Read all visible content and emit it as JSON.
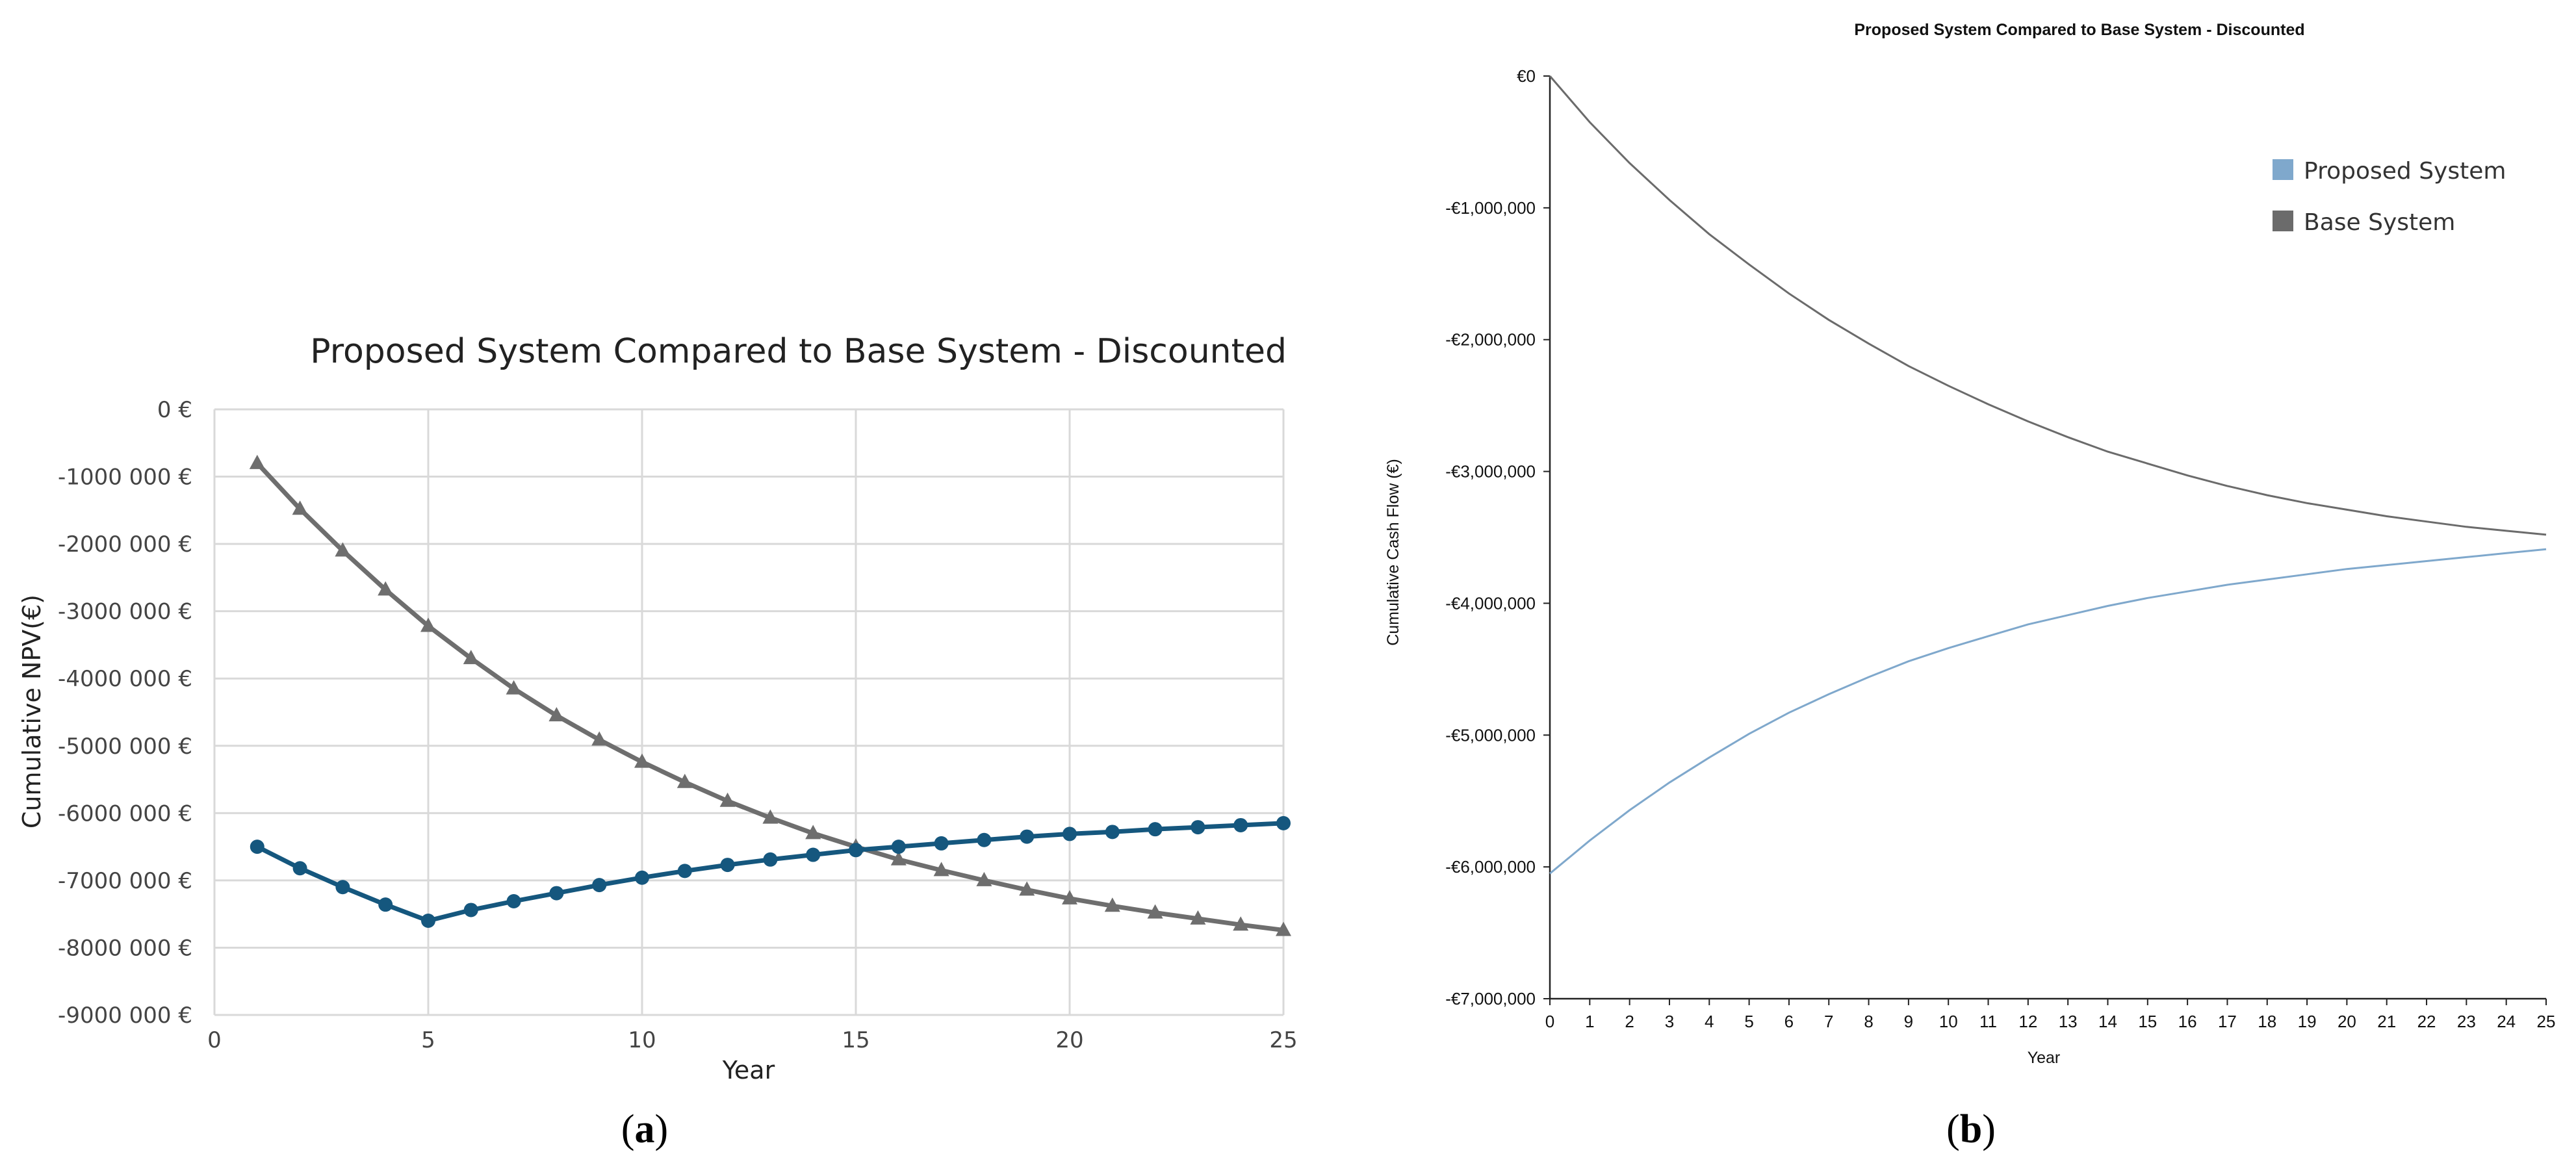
{
  "panels": [
    {
      "label_open": "(",
      "label_letter": "a",
      "label_close": ")"
    },
    {
      "label_open": "(",
      "label_letter": "b",
      "label_close": ")"
    }
  ],
  "chart_data": [
    {
      "type": "line",
      "title": "Proposed System Compared to Base System - Discounted",
      "xlabel": "Year",
      "ylabel": "Cumulative NPV(€)",
      "xlim": [
        0,
        25
      ],
      "ylim": [
        -9000000,
        0
      ],
      "grid": true,
      "x_ticks": [
        0,
        5,
        10,
        15,
        20,
        25
      ],
      "y_ticks": [
        0,
        -1000000,
        -2000000,
        -3000000,
        -4000000,
        -5000000,
        -6000000,
        -7000000,
        -8000000,
        -9000000
      ],
      "y_tick_labels": [
        "0 €",
        "-1000 000 €",
        "-2000 000 €",
        "-3000 000 €",
        "-4000 000 €",
        "-5000 000 €",
        "-6000 000 €",
        "-7000 000 €",
        "-8000 000 €",
        "-9000 000 €"
      ],
      "x": [
        1,
        2,
        3,
        4,
        5,
        6,
        7,
        8,
        9,
        10,
        11,
        12,
        13,
        14,
        15,
        16,
        17,
        18,
        19,
        20,
        21,
        22,
        23,
        24,
        25
      ],
      "series": [
        {
          "name": "Base System",
          "color": "#6e6e6e",
          "marker": "triangle",
          "values": [
            -800000,
            -1480000,
            -2100000,
            -2680000,
            -3220000,
            -3700000,
            -4150000,
            -4550000,
            -4910000,
            -5240000,
            -5540000,
            -5820000,
            -6070000,
            -6300000,
            -6500000,
            -6690000,
            -6850000,
            -7000000,
            -7140000,
            -7270000,
            -7380000,
            -7480000,
            -7570000,
            -7660000,
            -7740000
          ]
        },
        {
          "name": "Proposed System",
          "color": "#15577e",
          "marker": "circle",
          "values": [
            -6500000,
            -6820000,
            -7100000,
            -7360000,
            -7600000,
            -7440000,
            -7310000,
            -7190000,
            -7070000,
            -6960000,
            -6860000,
            -6770000,
            -6690000,
            -6620000,
            -6550000,
            -6500000,
            -6450000,
            -6400000,
            -6350000,
            -6310000,
            -6280000,
            -6240000,
            -6210000,
            -6180000,
            -6150000
          ]
        }
      ]
    },
    {
      "type": "line",
      "title": "Proposed System Compared to Base System - Discounted",
      "xlabel": "Year",
      "ylabel": "Cumulative Cash Flow (€)",
      "xlim": [
        0,
        25
      ],
      "ylim": [
        -7000000,
        0
      ],
      "grid": false,
      "legend_position": "top-right",
      "x_ticks": [
        0,
        1,
        2,
        3,
        4,
        5,
        6,
        7,
        8,
        9,
        10,
        11,
        12,
        13,
        14,
        15,
        16,
        17,
        18,
        19,
        20,
        21,
        22,
        23,
        24,
        25
      ],
      "y_ticks": [
        0,
        -1000000,
        -2000000,
        -3000000,
        -4000000,
        -5000000,
        -6000000,
        -7000000
      ],
      "y_tick_labels": [
        "€0",
        "-€1,000,000",
        "-€2,000,000",
        "-€3,000,000",
        "-€4,000,000",
        "-€5,000,000",
        "-€6,000,000",
        "-€7,000,000"
      ],
      "x": [
        0,
        1,
        2,
        3,
        4,
        5,
        6,
        7,
        8,
        9,
        10,
        11,
        12,
        13,
        14,
        15,
        16,
        17,
        18,
        19,
        20,
        21,
        22,
        23,
        24,
        25
      ],
      "series": [
        {
          "name": "Proposed System",
          "color": "#7fa8cc",
          "values": [
            -6050000,
            -5800000,
            -5570000,
            -5360000,
            -5170000,
            -4990000,
            -4830000,
            -4690000,
            -4560000,
            -4440000,
            -4340000,
            -4250000,
            -4160000,
            -4090000,
            -4020000,
            -3960000,
            -3910000,
            -3860000,
            -3820000,
            -3780000,
            -3740000,
            -3710000,
            -3680000,
            -3650000,
            -3620000,
            -3590000
          ]
        },
        {
          "name": "Base System",
          "color": "#6b6b6b",
          "values": [
            0,
            -350000,
            -660000,
            -940000,
            -1200000,
            -1430000,
            -1650000,
            -1850000,
            -2030000,
            -2200000,
            -2350000,
            -2490000,
            -2620000,
            -2740000,
            -2850000,
            -2940000,
            -3030000,
            -3110000,
            -3180000,
            -3240000,
            -3290000,
            -3340000,
            -3380000,
            -3420000,
            -3450000,
            -3480000
          ]
        }
      ]
    }
  ]
}
